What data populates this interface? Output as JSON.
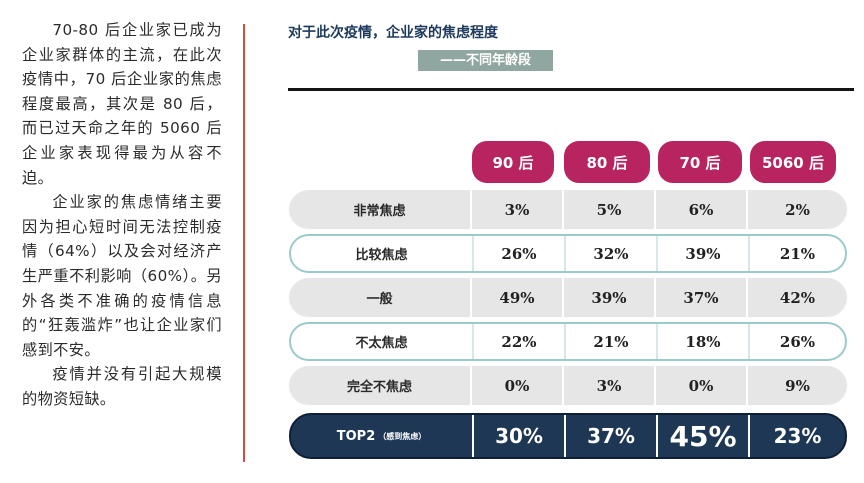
{
  "body_text": {
    "paragraphs": [
      "70-80 后企业家已成为企业家群体的主流，在此次疫情中，70 后企业家的焦虑程度最高，其次是 80 后，而已过天命之年的 5060 后企业家表现得最为从容不迫。",
      "企业家的焦虑情绪主要因为担心短时间无法控制疫情（64%）以及会对经济产生严重不利影响（60%）。另外各类不准确的疫情信息的“狂轰滥炸”也让企业家们感到不安。",
      "疫情并没有引起大规模的物资短缺。"
    ]
  },
  "chart": {
    "title": "对于此次疫情，企业家的焦虑程度",
    "subtitle": "——不同年龄段"
  },
  "chart_data": {
    "type": "table",
    "title": "对于此次疫情，企业家的焦虑程度",
    "subtitle": "——不同年龄段",
    "columns": [
      "90 后",
      "80 后",
      "70 后",
      "5060 后"
    ],
    "rows": [
      {
        "label": "非常焦虑",
        "values": [
          "3%",
          "5%",
          "6%",
          "2%"
        ]
      },
      {
        "label": "比较焦虑",
        "values": [
          "26%",
          "32%",
          "39%",
          "21%"
        ]
      },
      {
        "label": "一般",
        "values": [
          "49%",
          "39%",
          "37%",
          "42%"
        ]
      },
      {
        "label": "不太焦虑",
        "values": [
          "22%",
          "21%",
          "18%",
          "26%"
        ]
      },
      {
        "label": "完全不焦虑",
        "values": [
          "0%",
          "3%",
          "0%",
          "9%"
        ]
      }
    ],
    "total_row": {
      "label": "TOP2",
      "label_note": "（感到焦虑）",
      "values": [
        "30%",
        "37%",
        "45%",
        "23%"
      ]
    }
  },
  "colors": {
    "column_header": "#b7245f",
    "total_row": "#1e3755",
    "row_gray": "#e6e6e6",
    "row_outline": "#9ccacb",
    "subtitle_bg": "#8fa6a1",
    "divider": "#d64a48"
  }
}
